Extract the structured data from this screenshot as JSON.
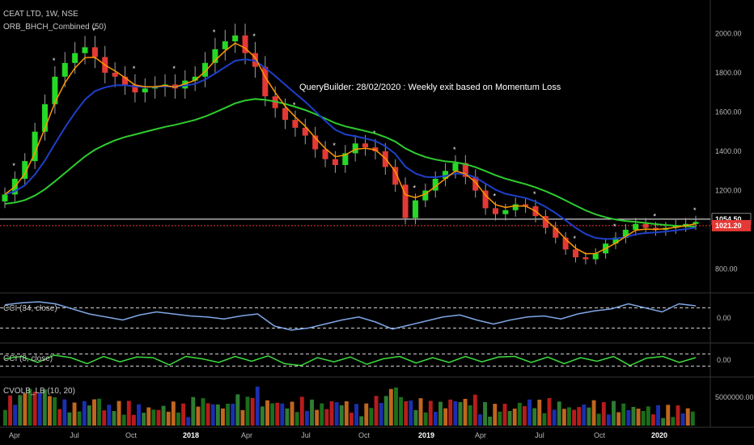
{
  "chart_data": {
    "type": "candlestick",
    "title": "CEAT LTD, 1W, NSE",
    "indicator": "ORB_BHCH_Combined (50)",
    "annotation": "QueryBuilder: 28/02/2020 : Weekly exit based on Momentum Loss",
    "x_ticks": [
      "Apr",
      "Jul",
      "Oct",
      "2018",
      "Apr",
      "Jul",
      "Oct",
      "2019",
      "Apr",
      "Jul",
      "Oct",
      "2020"
    ],
    "bold_ticks": [
      "2018",
      "2019",
      "2020"
    ],
    "price_axis": {
      "ticks": [
        "2000.00",
        "1800.00",
        "1600.00",
        "1400.00",
        "1200.00",
        "800.00"
      ],
      "ylim": [
        720,
        2150
      ]
    },
    "price_labels": [
      {
        "text": "1054.50",
        "value": 1054.5,
        "color": "#ffffff",
        "bg": "#000000"
      },
      {
        "text": "1021.20",
        "value": 1021.2,
        "color": "#ffffff",
        "bg": "#e53935"
      }
    ],
    "series": [
      {
        "name": "close",
        "values": [
          1180,
          1260,
          1350,
          1500,
          1640,
          1780,
          1850,
          1900,
          1930,
          1880,
          1800,
          1780,
          1740,
          1700,
          1720,
          1730,
          1740,
          1720,
          1760,
          1780,
          1850,
          1920,
          1960,
          1990,
          1900,
          1830,
          1680,
          1620,
          1560,
          1520,
          1480,
          1410,
          1360,
          1330,
          1390,
          1440,
          1420,
          1400,
          1320,
          1230,
          1060,
          1150,
          1200,
          1260,
          1300,
          1340,
          1270,
          1200,
          1110,
          1080,
          1100,
          1130,
          1120,
          1070,
          1010,
          960,
          900,
          860,
          850,
          880,
          930,
          960,
          1000,
          1030,
          1010,
          1000,
          1010,
          1020,
          1030,
          1040
        ]
      },
      {
        "name": "CCI (34, close)",
        "values": [
          130,
          150,
          160,
          140,
          90,
          40,
          10,
          -20,
          30,
          60,
          40,
          20,
          10,
          -10,
          20,
          40,
          -80,
          -120,
          -100,
          -60,
          -20,
          10,
          -40,
          -110,
          -70,
          -30,
          10,
          30,
          -20,
          -60,
          -20,
          10,
          20,
          -10,
          40,
          70,
          90,
          140,
          100,
          60,
          140,
          120
        ]
      },
      {
        "name": "CCI (8, close)",
        "values": [
          20,
          60,
          -40,
          80,
          40,
          -60,
          60,
          -30,
          50,
          40,
          -80,
          60,
          20,
          -40,
          60,
          -20,
          70,
          -60,
          -90,
          40,
          -30,
          50,
          -70,
          20,
          60,
          -50,
          40,
          -40,
          60,
          -30,
          50,
          60,
          -40,
          50,
          -60,
          40,
          -20,
          60,
          -90,
          30,
          60,
          -40,
          40
        ]
      }
    ],
    "ma_lines": [
      {
        "name": "fast",
        "color": "#ff9800"
      },
      {
        "name": "mid",
        "color": "#1e3fc9"
      },
      {
        "name": "slow",
        "color": "#2ecc2e"
      }
    ],
    "volume": {
      "name": "CVOLB_LB (10, 20)",
      "tick": "5000000.00"
    },
    "cci_ticks": [
      "0.00",
      "0.00"
    ],
    "panel_labels": [
      "CCI (34, close)",
      "CCI (8, close)"
    ]
  }
}
